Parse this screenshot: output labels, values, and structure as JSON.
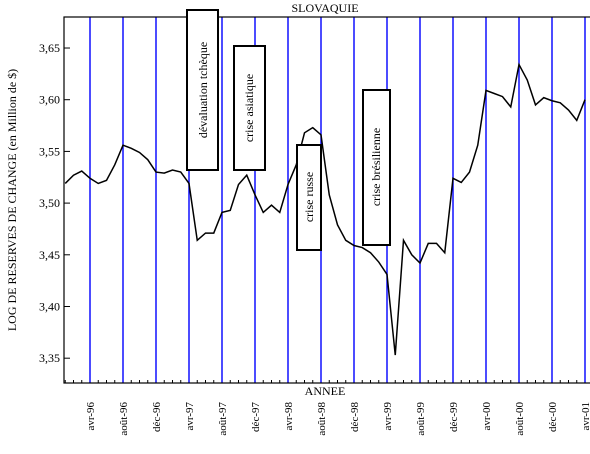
{
  "chart_data": {
    "type": "line",
    "title": "SLOVAQUIE",
    "x_label": "ANNEE",
    "y_label": "LOG DE RESERVES DE CHANGE (en Million de $)",
    "categories": [
      null,
      null,
      null,
      "avr-96",
      null,
      null,
      null,
      "août-96",
      null,
      null,
      null,
      "déc-96",
      null,
      null,
      null,
      "avr-97",
      null,
      null,
      null,
      "août-97",
      null,
      null,
      null,
      "déc-97",
      null,
      null,
      null,
      "avr-98",
      null,
      null,
      null,
      "août-98",
      null,
      null,
      null,
      "déc-98",
      null,
      null,
      null,
      "avr-99",
      null,
      null,
      null,
      "août-99",
      null,
      null,
      null,
      "déc-99",
      null,
      null,
      null,
      "avr-00",
      null,
      null,
      null,
      "août-00",
      null,
      null,
      null,
      "déc-00",
      null,
      null,
      null,
      "avr-01"
    ],
    "series": [
      {
        "name": "SLOVAQUIE",
        "color": "#000000",
        "values": [
          3.519,
          3.527,
          3.531,
          3.524,
          3.519,
          3.522,
          3.537,
          3.556,
          3.553,
          3.549,
          3.542,
          3.53,
          3.529,
          3.532,
          3.53,
          3.519,
          3.464,
          3.471,
          3.471,
          3.491,
          3.493,
          3.518,
          3.527,
          3.508,
          3.491,
          3.498,
          3.491,
          3.518,
          3.537,
          3.568,
          3.573,
          3.566,
          3.508,
          3.479,
          3.464,
          3.459,
          3.457,
          3.452,
          3.443,
          3.431,
          3.353,
          3.464,
          3.45,
          3.442,
          3.461,
          3.461,
          3.452,
          3.524,
          3.52,
          3.53,
          3.556,
          3.609,
          3.606,
          3.603,
          3.593,
          3.634,
          3.619,
          3.595,
          3.602,
          3.599,
          3.597,
          3.59,
          3.58,
          3.6
        ]
      }
    ],
    "ylim": [
      3.326,
      3.68
    ],
    "yticks": [
      {
        "value": 3.35,
        "label": "3,35"
      },
      {
        "value": 3.4,
        "label": "3,40"
      },
      {
        "value": 3.45,
        "label": "3,45"
      },
      {
        "value": 3.5,
        "label": "3,50"
      },
      {
        "value": 3.55,
        "label": "3,55"
      },
      {
        "value": 3.6,
        "label": "3,60"
      },
      {
        "value": 3.65,
        "label": "3,65"
      }
    ],
    "grid_color": "#0000ff",
    "annotations": [
      "dévaluation tchèque",
      "crise asiatique",
      "crise russe",
      "crise brésilienne"
    ]
  }
}
